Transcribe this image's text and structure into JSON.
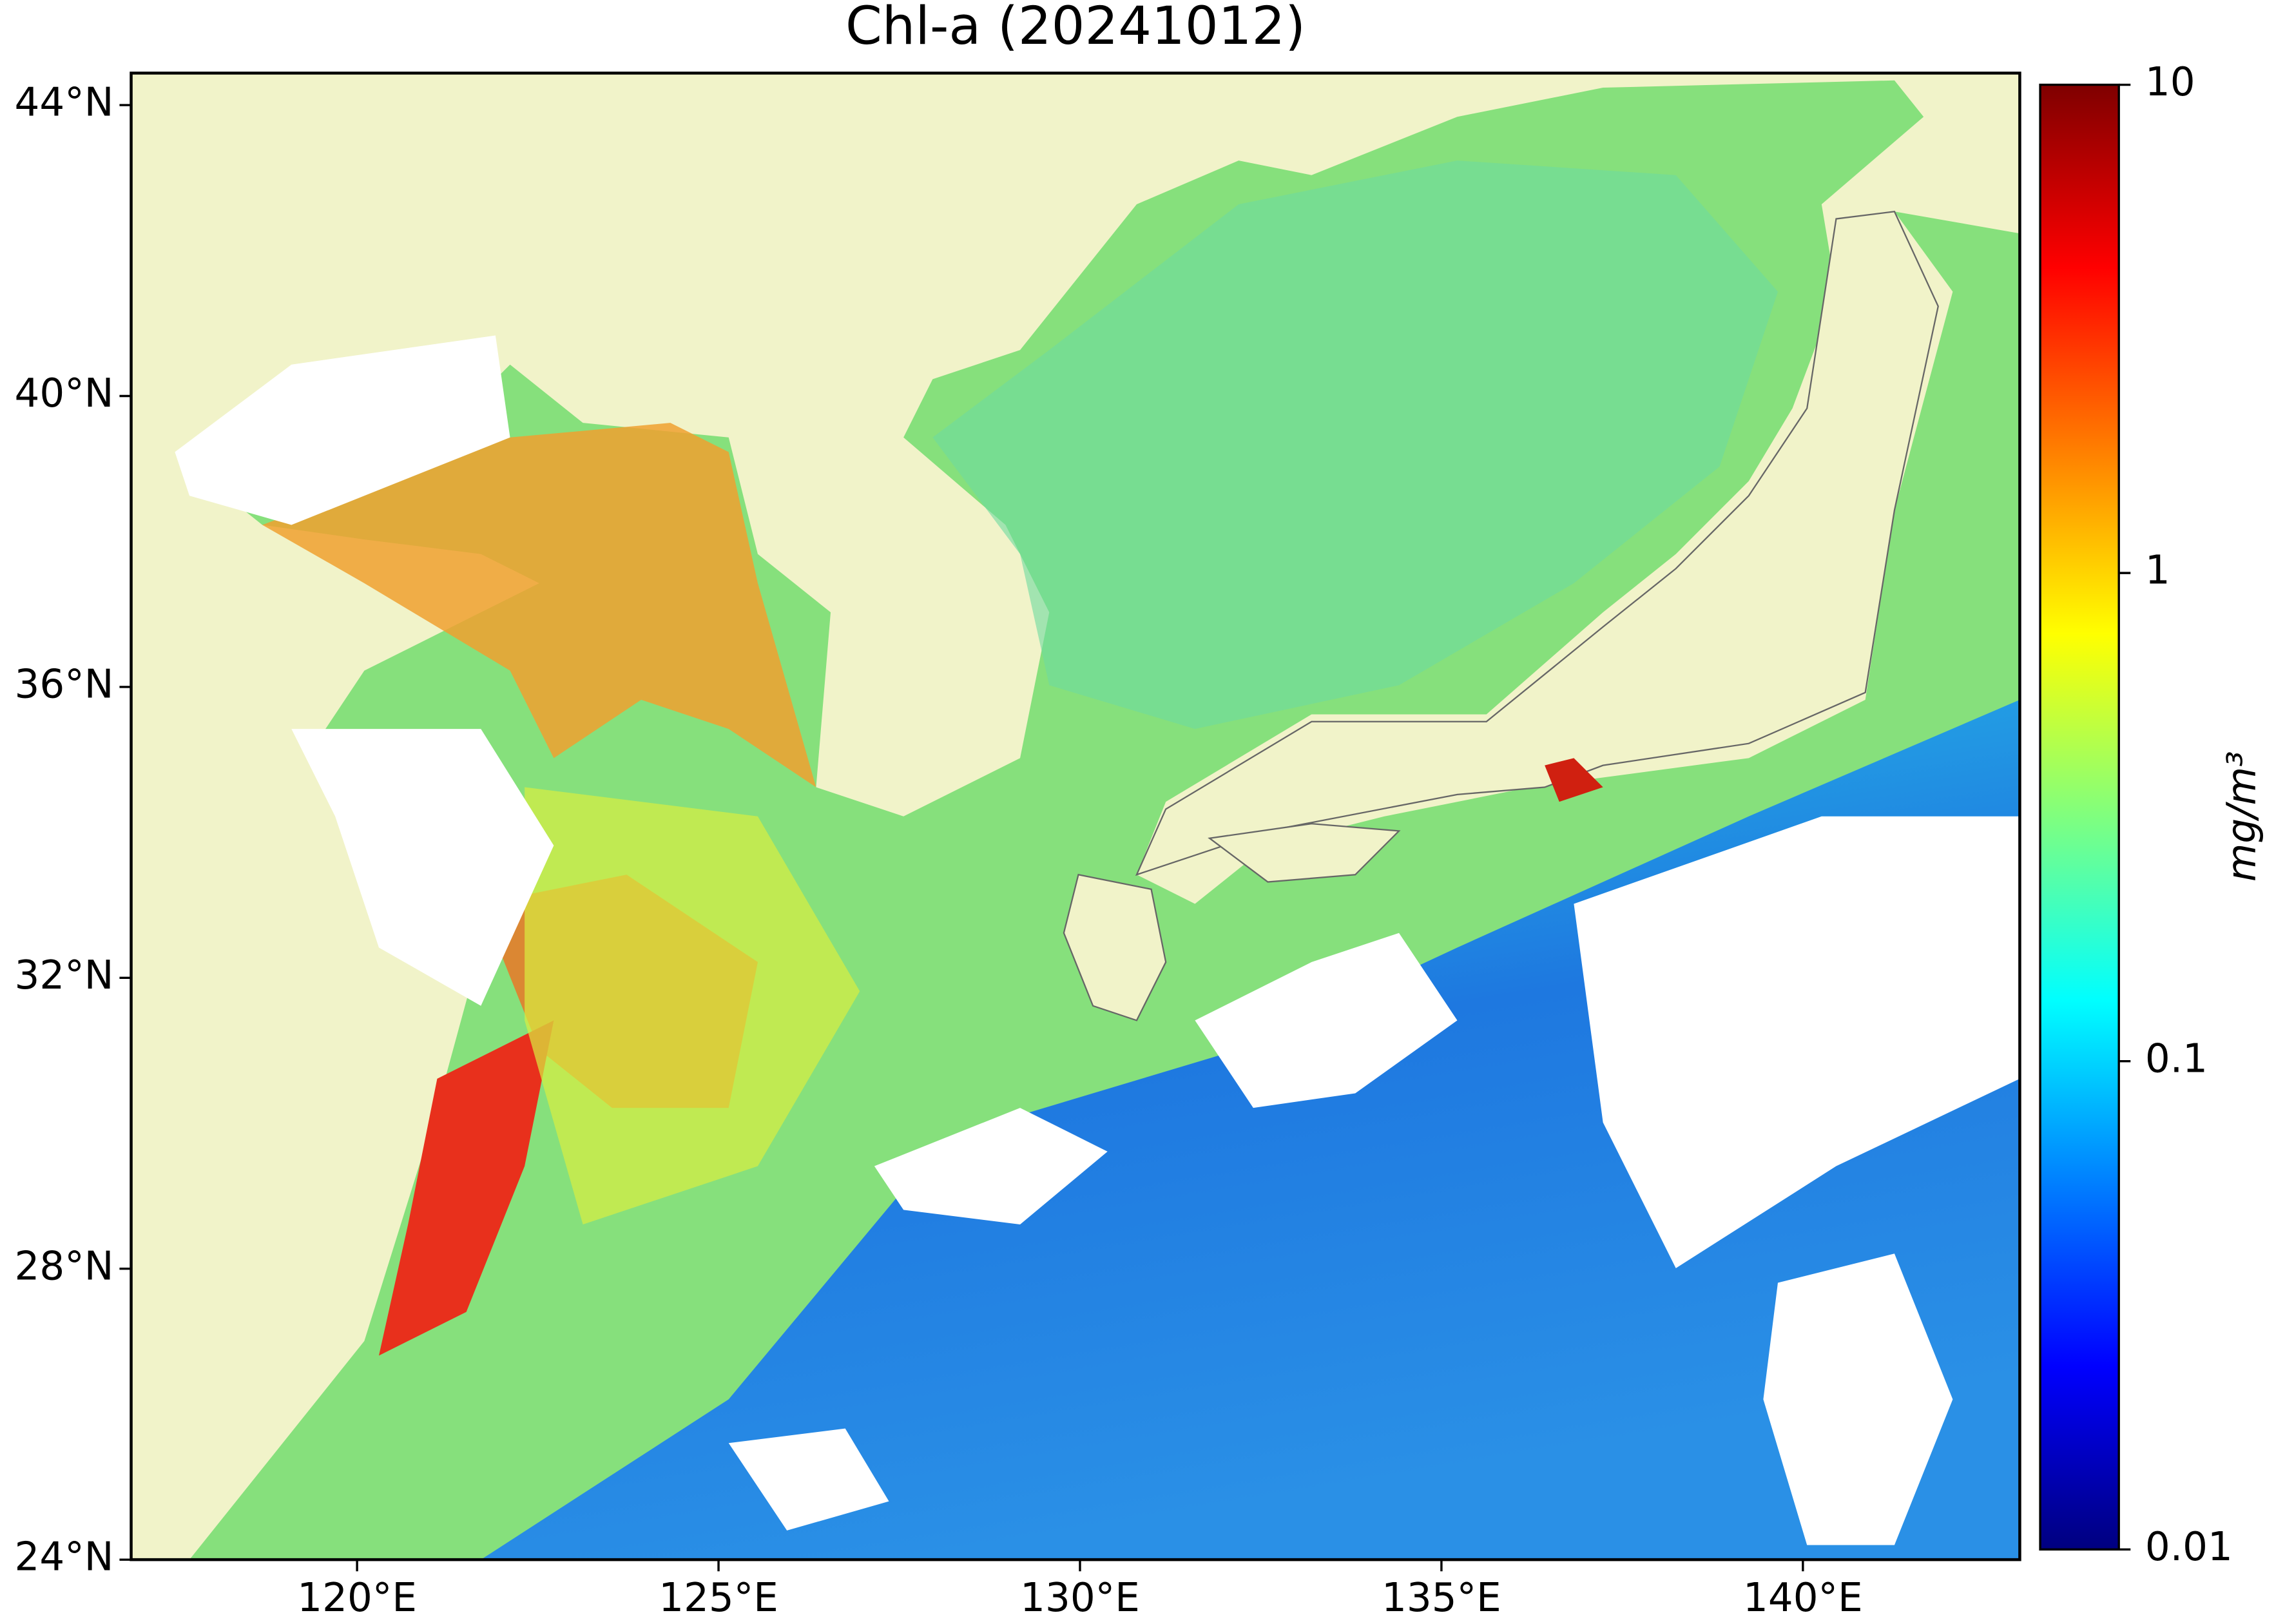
{
  "chart_data": {
    "type": "map",
    "title": "Chl-a (20241012)",
    "xlim": [
      116.875,
      143.0
    ],
    "ylim": [
      24,
      44.44
    ],
    "xticks": [
      {
        "value": 120,
        "label": "120°E"
      },
      {
        "value": 125,
        "label": "125°E"
      },
      {
        "value": 130,
        "label": "130°E"
      },
      {
        "value": 135,
        "label": "135°E"
      },
      {
        "value": 140,
        "label": "140°E"
      }
    ],
    "yticks": [
      {
        "value": 24,
        "label": "24°N"
      },
      {
        "value": 28,
        "label": "28°N"
      },
      {
        "value": 32,
        "label": "32°N"
      },
      {
        "value": 36,
        "label": "36°N"
      },
      {
        "value": 40,
        "label": "40°N"
      },
      {
        "value": 44,
        "label": "44°N"
      }
    ],
    "colorbar": {
      "label": "mg/m³",
      "scale": "log",
      "colormap": "jet",
      "lim": [
        0.01,
        10
      ],
      "ticks": [
        0.01,
        0.1,
        1,
        10
      ]
    }
  }
}
